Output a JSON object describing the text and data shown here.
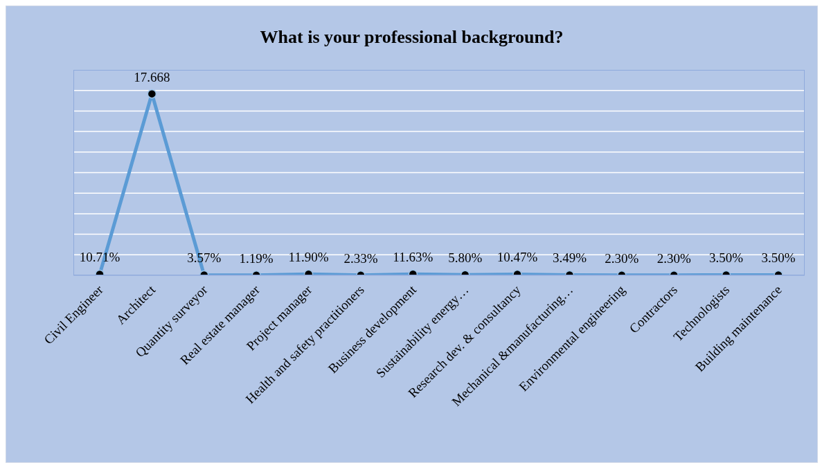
{
  "chart_data": {
    "type": "line",
    "title": "What is your professional background?",
    "categories": [
      "Civil Engineer",
      "Architect",
      "Quantity surveyor",
      "Real estate manager",
      "Project manager",
      "Health and safety practitioners",
      "Business development",
      "Sustainability energy…",
      "Research dev. & consultancy",
      "Mechanical &manufacturing…",
      "Environmental engineering",
      "Contractors",
      "Technologists",
      "Building maintenance"
    ],
    "series": [
      {
        "color": "#5b9bd5",
        "values": [
          0.1071,
          17.668,
          0.0357,
          0.0119,
          0.119,
          0.0233,
          0.1163,
          0.058,
          0.1047,
          0.0349,
          0.023,
          0.023,
          0.035,
          0.035
        ],
        "value_labels": [
          "10.71%",
          "17.668",
          "3.57%",
          "1.19%",
          "11.90%",
          "2.33%",
          "11.63%",
          "5.80%",
          "10.47%",
          "3.49%",
          "2.30%",
          "2.30%",
          "3.50%",
          "3.50%"
        ]
      }
    ],
    "ylim": [
      0,
      20
    ],
    "tick_labels": "x",
    "grid": "y",
    "marker": "circle",
    "line_style": "solid"
  }
}
